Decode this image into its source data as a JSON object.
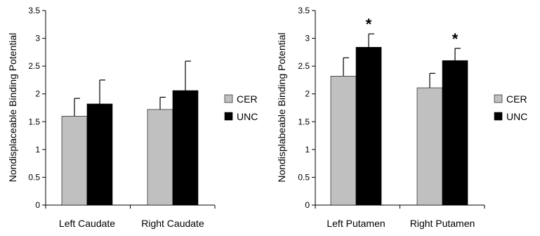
{
  "colors": {
    "CER": "#c0c0c0",
    "UNC": "#000000",
    "axis": "#000000"
  },
  "chart_data": [
    {
      "type": "bar",
      "ylabel": "Nondisplaceable Binding Potential",
      "xlabel": "",
      "ylim": [
        0,
        3.5
      ],
      "yticks": [
        0,
        0.5,
        1,
        1.5,
        2,
        2.5,
        3,
        3.5
      ],
      "ytick_labels": [
        "0",
        "0.5",
        "1",
        "1.5",
        "2",
        "2.5",
        "3",
        "3.5"
      ],
      "categories": [
        "Left Caudate",
        "Right Caudate"
      ],
      "legend": "right",
      "grid": false,
      "series": [
        {
          "name": "CER",
          "values": [
            1.6,
            1.72
          ],
          "error": [
            0.32,
            0.22
          ]
        },
        {
          "name": "UNC",
          "values": [
            1.82,
            2.06
          ],
          "error": [
            0.43,
            0.53
          ]
        }
      ],
      "annotations": [
        {
          "category": 0,
          "series": 1,
          "text": ""
        },
        {
          "category": 1,
          "series": 1,
          "text": ""
        }
      ]
    },
    {
      "type": "bar",
      "ylabel": "Nondisplabeable Binding Potential",
      "xlabel": "",
      "ylim": [
        0,
        3.5
      ],
      "yticks": [
        0,
        0.5,
        1,
        1.5,
        2,
        2.5,
        3,
        3.5
      ],
      "ytick_labels": [
        "0",
        "0.5",
        "1",
        "1.5",
        "2",
        "2.5",
        "3",
        "3.5"
      ],
      "categories": [
        "Left Putamen",
        "Right Putamen"
      ],
      "legend": "right",
      "grid": false,
      "series": [
        {
          "name": "CER",
          "values": [
            2.32,
            2.11
          ],
          "error": [
            0.33,
            0.26
          ]
        },
        {
          "name": "UNC",
          "values": [
            2.84,
            2.6
          ],
          "error": [
            0.24,
            0.22
          ]
        }
      ],
      "annotations": [
        {
          "category": 0,
          "series": 1,
          "text": "*"
        },
        {
          "category": 1,
          "series": 1,
          "text": "*"
        }
      ]
    }
  ]
}
